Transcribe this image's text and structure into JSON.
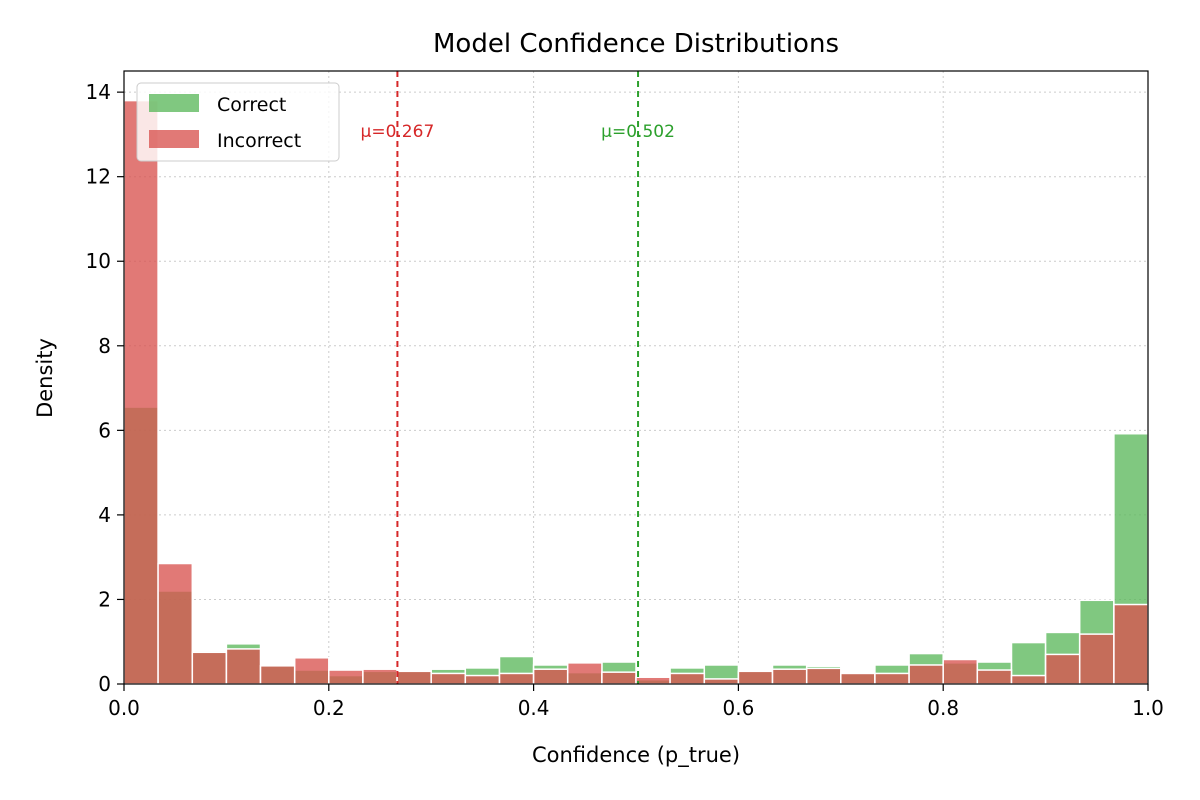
{
  "chart_data": {
    "type": "histogram",
    "title": "Model Confidence Distributions",
    "xlabel": "Confidence (p_true)",
    "ylabel": "Density",
    "xlim": [
      0,
      1
    ],
    "ylim": [
      0,
      14.5
    ],
    "xticks": [
      "0.0",
      "0.2",
      "0.4",
      "0.6",
      "0.8",
      "1.0"
    ],
    "yticks": [
      "0",
      "2",
      "4",
      "6",
      "8",
      "10",
      "12",
      "14"
    ],
    "grid": true,
    "legend_position": "upper-left",
    "bin_edges": [
      0,
      0.0333,
      0.0667,
      0.1,
      0.1333,
      0.1667,
      0.2,
      0.2333,
      0.2667,
      0.3,
      0.3333,
      0.3667,
      0.4,
      0.4333,
      0.4667,
      0.5,
      0.5333,
      0.5667,
      0.6,
      0.6333,
      0.6667,
      0.7,
      0.7333,
      0.7667,
      0.8,
      0.8333,
      0.8667,
      0.9,
      0.9333,
      0.9667,
      1.0
    ],
    "series": [
      {
        "name": "Correct",
        "color": "#5cb85c",
        "values": [
          6.55,
          2.2,
          0.78,
          0.95,
          0.43,
          0.33,
          0.2,
          0.3,
          0.3,
          0.35,
          0.38,
          0.65,
          0.45,
          0.27,
          0.52,
          0.1,
          0.38,
          0.45,
          0.3,
          0.45,
          0.42,
          0.25,
          0.45,
          0.72,
          0.5,
          0.52,
          0.98,
          1.22,
          1.98,
          5.92
        ]
      },
      {
        "name": "Incorrect",
        "color": "#d9534f",
        "values": [
          13.8,
          2.85,
          0.75,
          0.83,
          0.43,
          0.62,
          0.33,
          0.35,
          0.3,
          0.25,
          0.2,
          0.25,
          0.35,
          0.5,
          0.28,
          0.16,
          0.25,
          0.12,
          0.3,
          0.35,
          0.37,
          0.25,
          0.25,
          0.45,
          0.58,
          0.33,
          0.2,
          0.7,
          1.18,
          1.88
        ]
      }
    ],
    "mean_lines": [
      {
        "series": "Incorrect",
        "value": 0.267,
        "label": "μ=0.267",
        "color": "#d62728"
      },
      {
        "series": "Correct",
        "value": 0.502,
        "label": "μ=0.502",
        "color": "#2ca02c"
      }
    ]
  }
}
